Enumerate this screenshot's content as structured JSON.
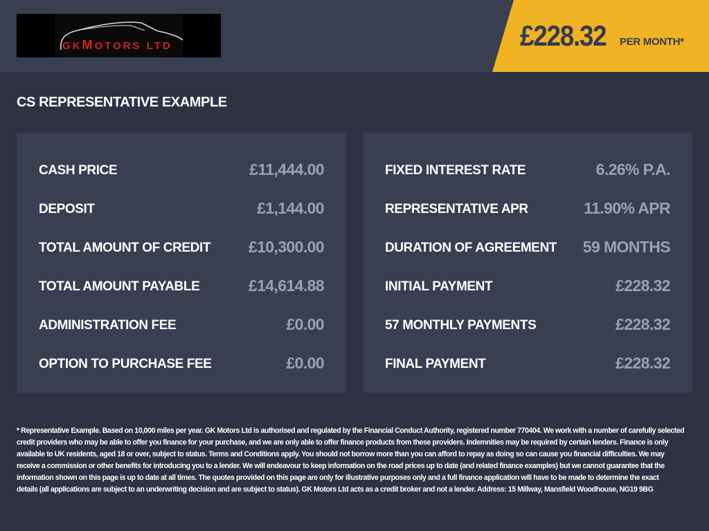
{
  "header": {
    "logo_text": "GK Motors LTD",
    "monthly_price": "£228.32",
    "per_month_label": "PER MONTH*",
    "accent_color": "#f0b323"
  },
  "section_title": "CS REPRESENTATIVE EXAMPLE",
  "left_panel": [
    {
      "label": "CASH PRICE",
      "value": "£11,444.00"
    },
    {
      "label": "DEPOSIT",
      "value": "£1,144.00"
    },
    {
      "label": "TOTAL AMOUNT OF CREDIT",
      "value": "£10,300.00"
    },
    {
      "label": "TOTAL AMOUNT PAYABLE",
      "value": "£14,614.88"
    },
    {
      "label": "ADMINISTRATION FEE",
      "value": "£0.00"
    },
    {
      "label": "OPTION TO PURCHASE FEE",
      "value": "£0.00"
    }
  ],
  "right_panel": [
    {
      "label": "FIXED INTEREST RATE",
      "value": "6.26% P.A."
    },
    {
      "label": "REPRESENTATIVE APR",
      "value": "11.90% APR"
    },
    {
      "label": "DURATION OF AGREEMENT",
      "value": "59 MONTHS"
    },
    {
      "label": "INITIAL PAYMENT",
      "value": "£228.32"
    },
    {
      "label": "57 MONTHLY PAYMENTS",
      "value": "£228.32"
    },
    {
      "label": "FINAL PAYMENT",
      "value": "£228.32"
    }
  ],
  "footer_lines": [
    "* Representative Example. Based on 10,000 miles per year. GK Motors Ltd is authorised and regulated by the Financial Conduct Authority, registered number 770404. We work with a number of carefully selected",
    "credit providers who may be able to offer you finance for your purchase, and we are only able to offer finance products from these providers. Indemnities may be required by certain lenders. Finance is only",
    "available to UK residents, aged 18 or over, subject to status. Terms and Conditions apply. You should not borrow more than you can afford to repay as doing so can cause you financial difficulties. We may",
    "receive a commission or other benefits for introducing you to a lender. We will endeavour to keep information on the road prices up to date (and related finance examples) but we cannot guarantee that the",
    "information shown on this page is up to date at all times. The quotes provided on this page are only for illustrative purposes only and a full finance application will have to be made to determine the exact",
    "details (all applications are subject to an underwriting decision and are subject to status). GK Motors Ltd acts as a credit broker and not a lender. Address: 15 Millway, Mansfield Woodhouse, NG19 9BG"
  ]
}
